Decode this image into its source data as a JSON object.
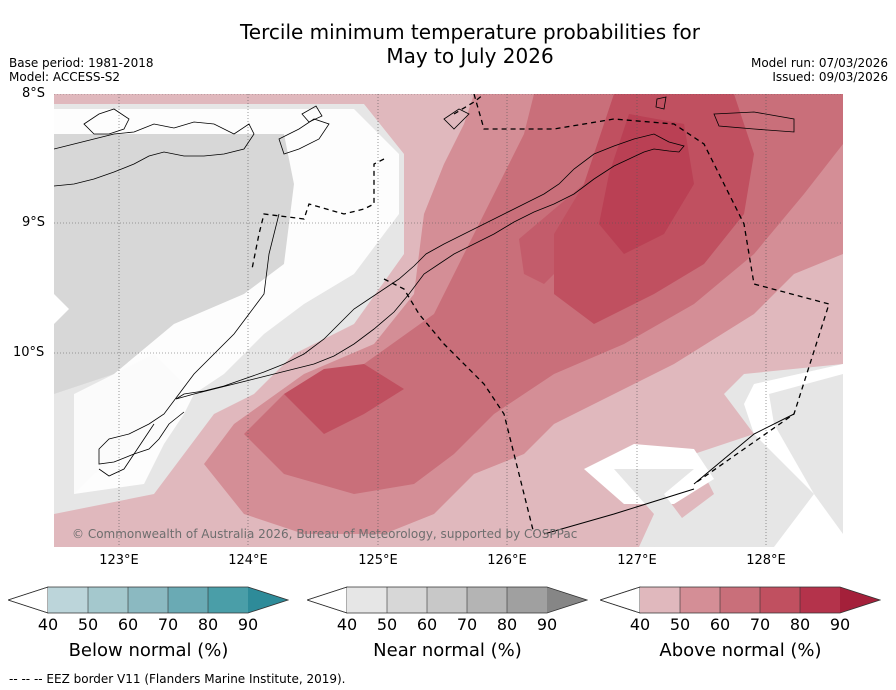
{
  "title_line1": "Tercile minimum temperature probabilities for",
  "title_line2": "May to July 2026",
  "base_period": "Base period: 1981-2018",
  "model": "Model: ACCESS-S2",
  "model_run": "Model run: 07/03/2026",
  "issued": "Issued: 09/03/2026",
  "map": {
    "lat_labels": [
      "8°S",
      "9°S",
      "10°S"
    ],
    "lon_labels": [
      "123°E",
      "124°E",
      "125°E",
      "126°E",
      "127°E",
      "128°E"
    ],
    "copyright": "© Commonwealth of Australia 2026, Bureau of Meteorology, supported by COSPPac"
  },
  "colorbars": [
    {
      "label": "Below normal (%)",
      "ticks": [
        "40",
        "50",
        "60",
        "70",
        "80",
        "90"
      ],
      "colors": [
        "#bcd5da",
        "#a4c8cd",
        "#8bb9c1",
        "#6aaab4",
        "#4a9ea8",
        "#2e8b99"
      ]
    },
    {
      "label": "Near normal (%)",
      "ticks": [
        "40",
        "50",
        "60",
        "70",
        "80",
        "90"
      ],
      "colors": [
        "#e6e6e6",
        "#d7d7d7",
        "#c8c8c8",
        "#b4b4b4",
        "#a0a0a0",
        "#868686"
      ]
    },
    {
      "label": "Above normal (%)",
      "ticks": [
        "40",
        "50",
        "60",
        "70",
        "80",
        "90"
      ],
      "colors": [
        "#e0b8bd",
        "#d48e96",
        "#c96f7a",
        "#c05060",
        "#b4334b",
        "#a4203a"
      ]
    }
  ],
  "footer": "--  --  -- EEZ border V11 (Flanders Marine Institute, 2019)."
}
